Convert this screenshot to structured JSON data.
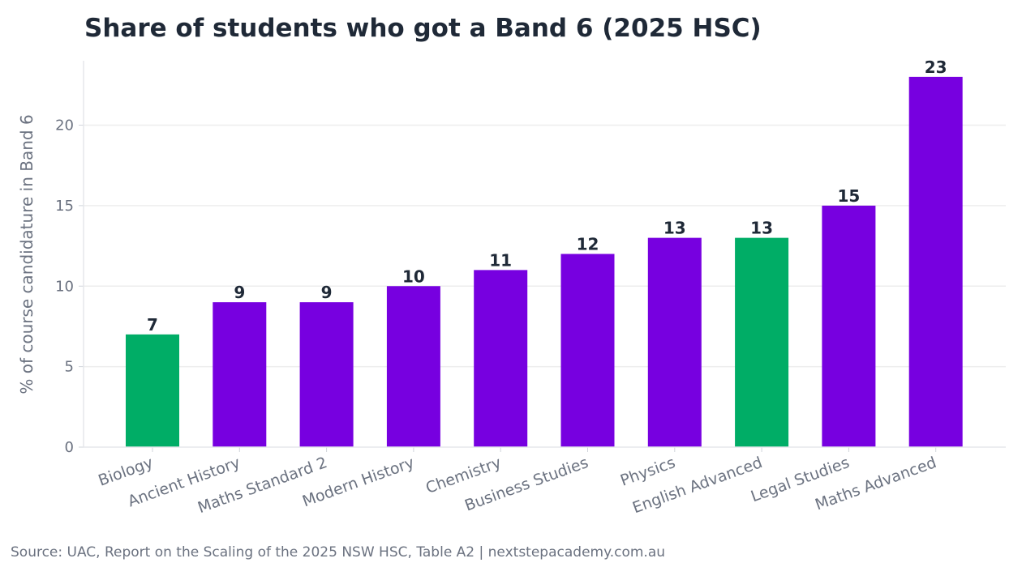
{
  "chart_data": {
    "type": "bar",
    "title": "Share of students who got a Band 6 (2025 HSC)",
    "xlabel": "",
    "ylabel": "% of course candidature in Band 6",
    "categories": [
      "Biology",
      "Ancient History",
      "Maths Standard 2",
      "Modern History",
      "Chemistry",
      "Business Studies",
      "Physics",
      "English Advanced",
      "Legal Studies",
      "Maths Advanced"
    ],
    "values": [
      7,
      9,
      9,
      10,
      11,
      12,
      13,
      13,
      15,
      23
    ],
    "value_labels": [
      "7",
      "9",
      "9",
      "10",
      "11",
      "12",
      "13",
      "13",
      "15",
      "23"
    ],
    "highlighted": [
      "Biology",
      "English Advanced"
    ],
    "ylim": [
      0,
      24
    ],
    "yticks": [
      0,
      5,
      10,
      15,
      20
    ],
    "grid": true,
    "colors": {
      "default": "#7700e0",
      "highlight": "#00ad66"
    }
  },
  "footer": {
    "source": "Source: UAC, Report on the Scaling of the 2025 NSW HSC, Table A2   |   nextstepacademy.com.au"
  }
}
